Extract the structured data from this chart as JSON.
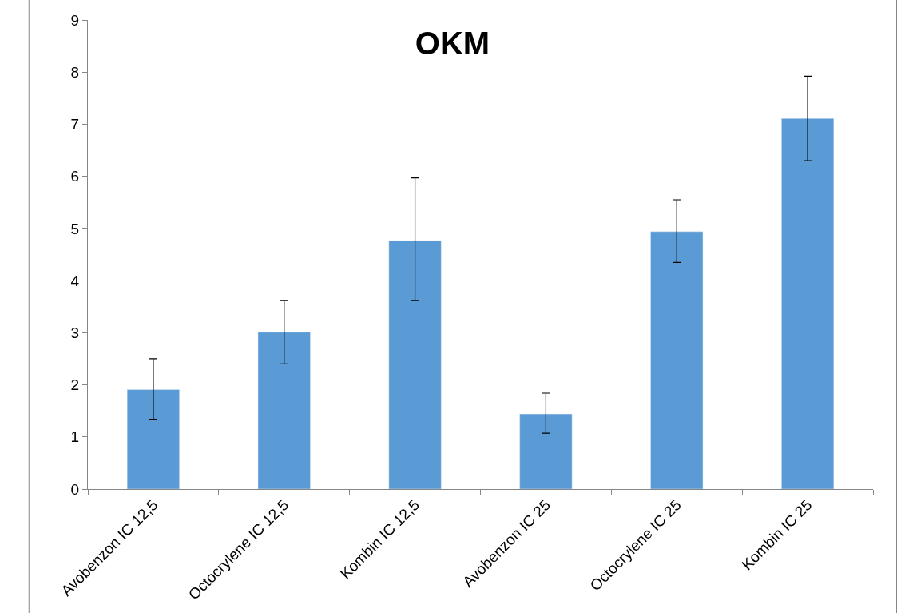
{
  "chart_data": {
    "type": "bar",
    "title": "OKM",
    "categories": [
      "Avobenzon IC 12,5",
      "Octocrylene IC 12,5",
      "Kombin IC 12,5",
      "Avobenzon IC 25",
      "Octocrylene IC 25",
      "Kombin IC 25"
    ],
    "values": [
      1.91,
      3.01,
      4.77,
      1.44,
      4.94,
      7.11
    ],
    "errors": [
      [
        1.34,
        2.5
      ],
      [
        2.4,
        3.62
      ],
      [
        3.62,
        5.97
      ],
      [
        1.07,
        1.84
      ],
      [
        4.35,
        5.55
      ],
      [
        6.3,
        7.92
      ]
    ],
    "color": "#5b9bd5",
    "ylim": [
      0,
      9
    ],
    "yticks": [
      0,
      1,
      2,
      3,
      4,
      5,
      6,
      7,
      8,
      9
    ],
    "grid": false,
    "legend": false
  }
}
